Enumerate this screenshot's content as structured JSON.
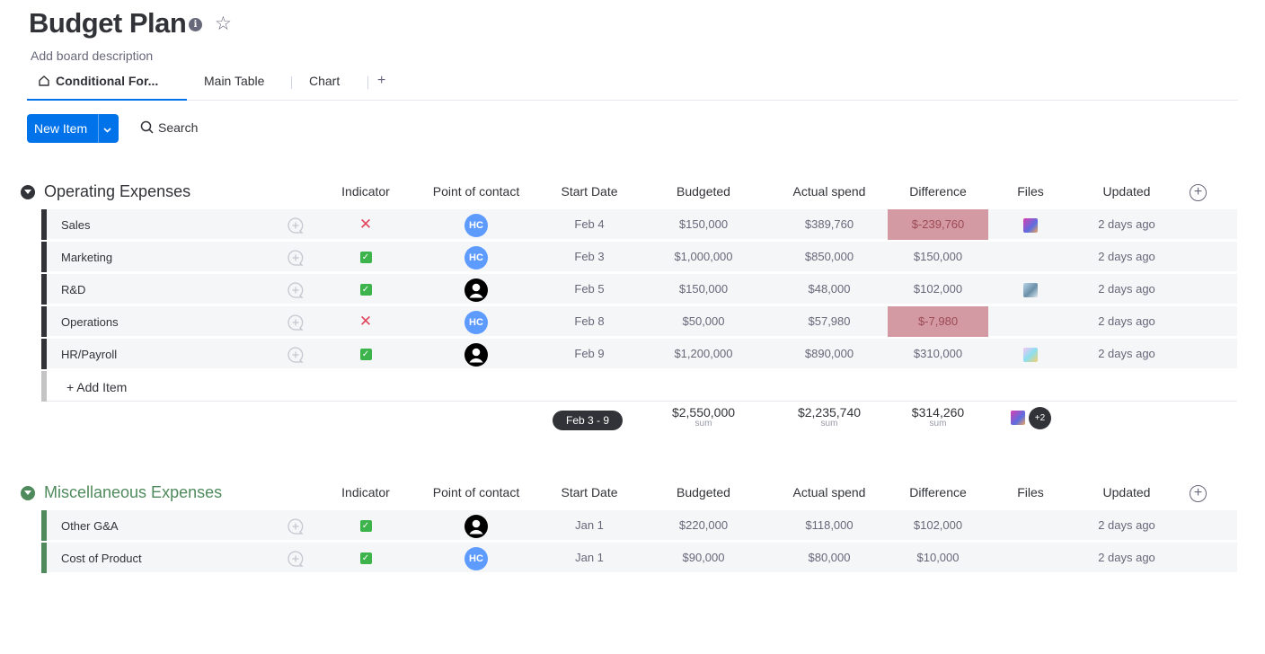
{
  "board": {
    "title": "Budget Plan",
    "info_icon": "info-icon",
    "star_icon": "star-icon",
    "description": "Add board description"
  },
  "tabs": [
    {
      "label": "Conditional For...",
      "icon": "home-icon",
      "active": true
    },
    {
      "label": "Main Table",
      "active": false
    },
    {
      "label": "Chart",
      "active": false
    },
    {
      "label": "+",
      "active": false
    }
  ],
  "toolbar": {
    "new_item_label": "New Item",
    "search_label": "Search"
  },
  "columns": [
    "Indicator",
    "Point of contact",
    "Start Date",
    "Budgeted",
    "Actual spend",
    "Difference",
    "Files",
    "Updated"
  ],
  "groups": [
    {
      "title": "Operating Expenses",
      "color": "#323338",
      "rows": [
        {
          "name": "Sales",
          "indicator": "x",
          "contact": "HC",
          "start": "Feb 4",
          "budgeted": "$150,000",
          "actual": "$389,760",
          "difference": "$-239,760",
          "negative": true,
          "file": "th1",
          "updated": "2 days ago"
        },
        {
          "name": "Marketing",
          "indicator": "ok",
          "contact": "HC",
          "start": "Feb 3",
          "budgeted": "$1,000,000",
          "actual": "$850,000",
          "difference": "$150,000",
          "negative": false,
          "file": "",
          "updated": "2 days ago"
        },
        {
          "name": "R&D",
          "indicator": "ok",
          "contact": "person",
          "start": "Feb 5",
          "budgeted": "$150,000",
          "actual": "$48,000",
          "difference": "$102,000",
          "negative": false,
          "file": "th2",
          "updated": "2 days ago"
        },
        {
          "name": "Operations",
          "indicator": "x",
          "contact": "HC",
          "start": "Feb 8",
          "budgeted": "$50,000",
          "actual": "$57,980",
          "difference": "$-7,980",
          "negative": true,
          "file": "",
          "updated": "2 days ago"
        },
        {
          "name": "HR/Payroll",
          "indicator": "ok",
          "contact": "person",
          "start": "Feb 9",
          "budgeted": "$1,200,000",
          "actual": "$890,000",
          "difference": "$310,000",
          "negative": false,
          "file": "th3",
          "updated": "2 days ago"
        }
      ],
      "add_item_label": "+ Add Item",
      "summary": {
        "date_range": "Feb 3 - 9",
        "budgeted": "$2,550,000",
        "actual": "$2,235,740",
        "difference": "$314,260",
        "unit": "sum",
        "files_more": "+2"
      }
    },
    {
      "title": "Miscellaneous Expenses",
      "color": "#579bfc",
      "rows": [
        {
          "name": "Other G&A",
          "indicator": "ok",
          "contact": "person",
          "start": "Jan 1",
          "budgeted": "$220,000",
          "actual": "$118,000",
          "difference": "$102,000",
          "negative": false,
          "file": "",
          "updated": "2 days ago"
        },
        {
          "name": "Cost of Product",
          "indicator": "ok",
          "contact": "HC",
          "start": "Jan 1",
          "budgeted": "$90,000",
          "actual": "$80,000",
          "difference": "$10,000",
          "negative": false,
          "file": "",
          "updated": "2 days ago"
        }
      ]
    }
  ]
}
